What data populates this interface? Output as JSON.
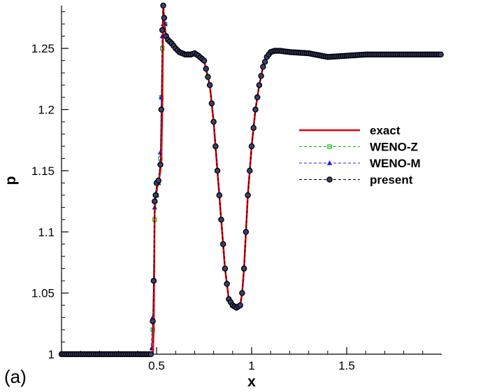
{
  "panel_label": "(a)",
  "chart_data": {
    "type": "line",
    "title": "",
    "xlabel": "x",
    "ylabel": "p",
    "xlim": [
      0.0,
      2.0
    ],
    "ylim": [
      1.0,
      1.285
    ],
    "xticks": [
      {
        "value": 0.5,
        "label": "0.5"
      },
      {
        "value": 1.0,
        "label": "1"
      },
      {
        "value": 1.5,
        "label": "1.5"
      }
    ],
    "yticks": [
      {
        "value": 1.0,
        "label": "1"
      },
      {
        "value": 1.05,
        "label": "1.05"
      },
      {
        "value": 1.1,
        "label": "1.1"
      },
      {
        "value": 1.15,
        "label": "1.15"
      },
      {
        "value": 1.2,
        "label": "1.2"
      },
      {
        "value": 1.25,
        "label": "1.25"
      }
    ],
    "legend_position": "center-right",
    "series": [
      {
        "name": "exact",
        "color": "#e8000b",
        "line": "solid",
        "marker": "none",
        "x": [
          0.0,
          0.47,
          0.48,
          0.485,
          0.49,
          0.495,
          0.5,
          0.51,
          0.52,
          0.525,
          0.53,
          0.535,
          0.54,
          0.55,
          0.56,
          0.58,
          0.6,
          0.62,
          0.65,
          0.68,
          0.7,
          0.72,
          0.75,
          0.78,
          0.8,
          0.82,
          0.84,
          0.86,
          0.88,
          0.9,
          0.92,
          0.94,
          0.95,
          0.96,
          0.97,
          0.98,
          1.0,
          1.02,
          1.04,
          1.06,
          1.08,
          1.1,
          1.12,
          1.15,
          1.2,
          1.3,
          1.4,
          1.5,
          1.6,
          1.7,
          1.8,
          1.9,
          1.995
        ],
        "y": [
          1.0,
          1.0,
          1.0,
          1.02,
          1.12,
          1.13,
          1.135,
          1.14,
          1.15,
          1.16,
          1.2,
          1.285,
          1.27,
          1.26,
          1.258,
          1.255,
          1.25,
          1.247,
          1.245,
          1.245,
          1.246,
          1.244,
          1.24,
          1.22,
          1.19,
          1.15,
          1.11,
          1.07,
          1.045,
          1.04,
          1.038,
          1.04,
          1.05,
          1.07,
          1.1,
          1.13,
          1.17,
          1.2,
          1.22,
          1.235,
          1.243,
          1.247,
          1.248,
          1.248,
          1.247,
          1.246,
          1.243,
          1.244,
          1.245,
          1.245,
          1.245,
          1.245,
          1.245
        ]
      },
      {
        "name": "WENO-Z",
        "color": "#00b400",
        "line": "dashed",
        "marker": "square",
        "x": [
          0.48,
          0.49,
          0.5,
          0.51,
          0.52,
          0.525,
          0.53,
          0.535,
          0.54,
          0.545
        ],
        "y": [
          1.02,
          1.11,
          1.13,
          1.14,
          1.16,
          1.21,
          1.25,
          1.265,
          1.275,
          1.27
        ]
      },
      {
        "name": "WENO-M",
        "color": "#2020ff",
        "line": "dashed",
        "marker": "triangle",
        "x": [
          0.475,
          0.48,
          0.49,
          0.5,
          0.51,
          0.52,
          0.525,
          0.53,
          0.535,
          0.54,
          0.545
        ],
        "y": [
          1.005,
          1.03,
          1.12,
          1.13,
          1.14,
          1.165,
          1.21,
          1.26,
          1.27,
          1.275,
          1.27
        ]
      },
      {
        "name": "present",
        "color": "#000000",
        "line": "dashed",
        "marker": "circle",
        "x": [
          0.0,
          0.47,
          0.48,
          0.485,
          0.49,
          0.495,
          0.5,
          0.51,
          0.52,
          0.525,
          0.53,
          0.535,
          0.54,
          0.55,
          0.56,
          0.58,
          0.6,
          0.62,
          0.65,
          0.68,
          0.7,
          0.72,
          0.75,
          0.78,
          0.8,
          0.82,
          0.84,
          0.86,
          0.88,
          0.9,
          0.92,
          0.94,
          0.95,
          0.96,
          0.97,
          0.98,
          1.0,
          1.02,
          1.04,
          1.06,
          1.08,
          1.1,
          1.12,
          1.15,
          1.2,
          1.3,
          1.4,
          1.5,
          1.6,
          1.7,
          1.8,
          1.9,
          1.995
        ],
        "y": [
          1.0,
          1.0,
          1.027,
          1.06,
          1.125,
          1.13,
          1.14,
          1.142,
          1.155,
          1.2,
          1.265,
          1.285,
          1.275,
          1.26,
          1.257,
          1.254,
          1.25,
          1.247,
          1.245,
          1.245,
          1.246,
          1.244,
          1.24,
          1.22,
          1.19,
          1.15,
          1.11,
          1.07,
          1.045,
          1.04,
          1.038,
          1.04,
          1.05,
          1.07,
          1.1,
          1.13,
          1.17,
          1.2,
          1.22,
          1.235,
          1.243,
          1.247,
          1.248,
          1.248,
          1.247,
          1.246,
          1.243,
          1.244,
          1.245,
          1.245,
          1.245,
          1.245,
          1.245
        ]
      }
    ]
  }
}
